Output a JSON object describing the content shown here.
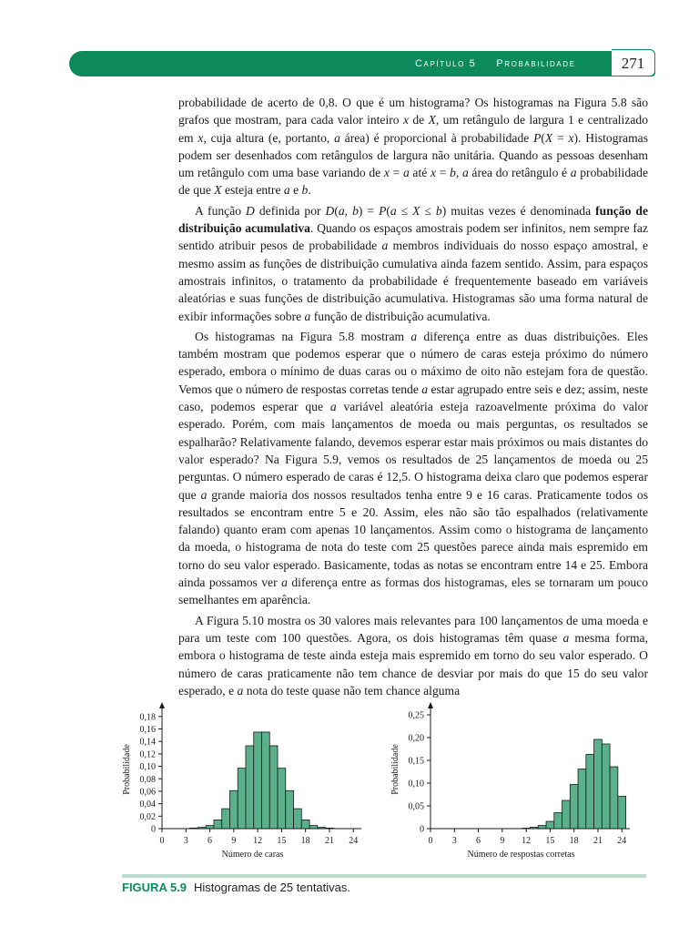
{
  "header": {
    "chapter": "Capítulo 5",
    "section": "Probabilidade",
    "page_number": "271",
    "accent_color": "#0d8a5c"
  },
  "paragraphs": [
    "probabilidade de acerto de 0,8. O que é um histograma? Os histogramas na Figura 5.8 são grafos que mostram, para cada valor inteiro x de X, um retângulo de largura 1 e centralizado em x, cuja altura (e, portanto, a área) é proporcional à probabilidade P(X = x). Histogramas podem ser desenhados com retângulos de largura não unitária. Quando as pessoas desenham um retângulo com uma base variando de x = a até x = b, a área do retângulo é a probabilidade de que X esteja entre a e b.",
    "A função D definida por D(a, b) = P(a ≤ X ≤ b) muitas vezes é denominada função de distribuição acumulativa. Quando os espaços amostrais podem ser infinitos, nem sempre faz sentido atribuir pesos de probabilidade a membros individuais do nosso espaço amostral, e mesmo assim as funções de distribuição cumulativa ainda fazem sentido. Assim, para espaços amostrais infinitos, o tratamento da probabilidade é frequentemente baseado em variáveis aleatórias e suas funções de distribuição acumulativa. Histogramas são uma forma natural de exibir informações sobre a função de distribuição acumulativa.",
    "Os histogramas na Figura 5.8 mostram a diferença entre as duas distribuições. Eles também mostram que podemos esperar que o número de caras esteja próximo do número esperado, embora o mínimo de duas caras ou o máximo de oito não estejam fora de questão. Vemos que o número de respostas corretas tende a estar agrupado entre seis e dez; assim, neste caso, podemos esperar que a variável aleatória esteja razoavelmente próxima do valor esperado. Porém, com mais lançamentos de moeda ou mais perguntas, os resultados se espalharão? Relativamente falando, devemos esperar estar mais próximos ou mais distantes do valor esperado? Na Figura 5.9, vemos os resultados de 25 lançamentos de moeda ou 25 perguntas. O número esperado de caras é 12,5. O histograma deixa claro que podemos esperar que a grande maioria dos nossos resultados tenha entre 9 e 16 caras. Praticamente todos os resultados se encontram entre 5 e 20. Assim, eles não são tão espalhados (relativamente falando) quanto eram com apenas 10 lançamentos. Assim como o histograma de lançamento da moeda, o histograma de nota do teste com 25 questões parece ainda mais espremido em torno do seu valor esperado. Basicamente, todas as notas se encontram entre 14 e 25. Embora ainda possamos ver a diferença entre as formas dos histogramas, eles se tornaram um pouco semelhantes em aparência.",
    "A Figura 5.10 mostra os 30 valores mais relevantes para 100 lançamentos de uma moeda e para um teste com 100 questões. Agora, os dois histogramas têm quase a mesma forma, embora o histograma de teste ainda esteja mais espremido em torno do seu valor esperado. O número de caras praticamente não tem chance de desviar por mais do que 15 do seu valor esperado, e a nota do teste quase não tem chance alguma"
  ],
  "chart_data": [
    {
      "type": "bar",
      "title": "",
      "xlabel": "Número de caras",
      "ylabel": "Probabilidade",
      "xlim": [
        0,
        25
      ],
      "ylim": [
        0,
        0.19
      ],
      "x_ticks": [
        "0",
        "3",
        "6",
        "9",
        "12",
        "15",
        "18",
        "21",
        "24"
      ],
      "y_ticks": [
        "0",
        "0,02",
        "0,04",
        "0,06",
        "0,08",
        "0,10",
        "0,12",
        "0,14",
        "0,16",
        "0,18"
      ],
      "categories": [
        4,
        5,
        6,
        7,
        8,
        9,
        10,
        11,
        12,
        13,
        14,
        15,
        16,
        17,
        18,
        19,
        20,
        21
      ],
      "values": [
        0.001,
        0.002,
        0.005,
        0.014,
        0.032,
        0.061,
        0.097,
        0.133,
        0.155,
        0.155,
        0.133,
        0.097,
        0.061,
        0.032,
        0.014,
        0.005,
        0.002,
        0.001
      ],
      "bar_color": "#5bb08c",
      "grid": false
    },
    {
      "type": "bar",
      "title": "",
      "xlabel": "Número de respostas corretas",
      "ylabel": "Probabilidade",
      "xlim": [
        0,
        25
      ],
      "ylim": [
        0,
        0.26
      ],
      "x_ticks": [
        "0",
        "3",
        "6",
        "9",
        "12",
        "15",
        "18",
        "21",
        "24"
      ],
      "y_ticks": [
        "0",
        "0,05",
        "0,10",
        "0,15",
        "0,20",
        "0,25"
      ],
      "categories": [
        12,
        13,
        14,
        15,
        16,
        17,
        18,
        19,
        20,
        21,
        22,
        23,
        24
      ],
      "values": [
        0.001,
        0.003,
        0.007,
        0.016,
        0.035,
        0.062,
        0.097,
        0.131,
        0.163,
        0.196,
        0.186,
        0.136,
        0.071
      ],
      "bar_color": "#5bb08c",
      "grid": false
    }
  ],
  "caption": {
    "label": "FIGURA 5.9",
    "text": "Histogramas de 25 tentativas."
  }
}
